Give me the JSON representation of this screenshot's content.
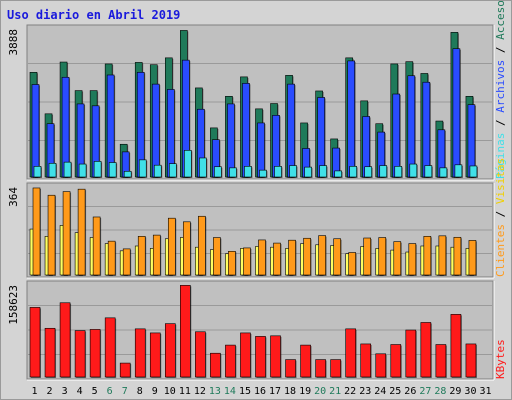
{
  "title": "Uso diario en Abril 2019",
  "colors": {
    "visitas": "#ffff60",
    "visitas_alt": "#f0d000",
    "clientes": "#ff9a1a",
    "paginas": "#40e0e8",
    "archivos": "#2a4cff",
    "accesos": "#1f7a5a",
    "kbytes": "#ff1a1a",
    "weekend": "#1f7a5a",
    "weekday": "#000000"
  },
  "chart_data": [
    {
      "type": "bar",
      "name": "accesos-archivos-paginas",
      "categories": [
        "1",
        "2",
        "3",
        "4",
        "5",
        "6",
        "7",
        "8",
        "9",
        "10",
        "11",
        "12",
        "13",
        "14",
        "15",
        "16",
        "17",
        "18",
        "19",
        "20",
        "21",
        "22",
        "23",
        "24",
        "25",
        "26",
        "27",
        "28",
        "29",
        "30",
        "31"
      ],
      "weekend_days": [
        6,
        7,
        13,
        14,
        20,
        21,
        27,
        28
      ],
      "ymax_label": "3888",
      "ymax": 3888,
      "series": [
        {
          "name": "Accesos",
          "color": "#1f7a5a",
          "values": [
            2750,
            1660,
            3020,
            2270,
            2270,
            2970,
            860,
            3010,
            2950,
            3130,
            3850,
            2340,
            1290,
            2120,
            2630,
            1790,
            1930,
            2670,
            1420,
            2260,
            1000,
            3130,
            2000,
            1400,
            2970,
            3030,
            2720,
            1470,
            3800,
            2120,
            0
          ]
        },
        {
          "name": "Archivos",
          "color": "#2a4cff",
          "values": [
            2430,
            1400,
            2620,
            1920,
            1870,
            2680,
            660,
            2750,
            2440,
            2300,
            3070,
            1780,
            980,
            1920,
            2460,
            1420,
            1620,
            2440,
            750,
            2090,
            760,
            3050,
            1590,
            1180,
            2180,
            2660,
            2490,
            1240,
            3370,
            1900,
            0
          ]
        },
        {
          "name": "Páginas",
          "color": "#40e0e8",
          "values": [
            280,
            360,
            390,
            340,
            410,
            380,
            150,
            450,
            310,
            350,
            700,
            500,
            270,
            240,
            280,
            180,
            280,
            300,
            260,
            300,
            160,
            280,
            270,
            300,
            280,
            340,
            300,
            240,
            320,
            290,
            0
          ]
        }
      ]
    },
    {
      "type": "bar",
      "name": "visitas-clientes",
      "ymax_label": "364",
      "ymax": 364,
      "series": [
        {
          "name": "Clientes",
          "color": "#ff9a1a",
          "values": [
            360,
            330,
            345,
            355,
            240,
            140,
            108,
            160,
            165,
            235,
            220,
            243,
            155,
            98,
            112,
            145,
            132,
            144,
            152,
            163,
            150,
            93,
            153,
            155,
            138,
            130,
            160,
            162,
            156,
            143,
            0
          ]
        },
        {
          "name": "Visitas",
          "color": "#ffff60",
          "values": [
            190,
            160,
            205,
            175,
            155,
            130,
            100,
            120,
            110,
            150,
            155,
            115,
            105,
            88,
            110,
            118,
            115,
            110,
            130,
            125,
            122,
            88,
            118,
            110,
            103,
            95,
            120,
            120,
            115,
            110,
            0
          ]
        }
      ]
    },
    {
      "type": "bar",
      "name": "kbytes",
      "ymax_label": "158623",
      "ymax": 158623,
      "series": [
        {
          "name": "KBytes",
          "color": "#ff1a1a",
          "values": [
            120000,
            84000,
            128000,
            80000,
            82000,
            102000,
            24000,
            83000,
            76000,
            92000,
            158000,
            78000,
            41000,
            55000,
            76000,
            70000,
            71000,
            30000,
            55000,
            30000,
            30000,
            83000,
            57000,
            40000,
            56000,
            81000,
            94000,
            56000,
            108000,
            57000,
            0
          ]
        }
      ]
    }
  ],
  "side_labels": {
    "accesos": "Accesos",
    "archivos": "Archivos",
    "paginas": "Páginas",
    "visitas": "Visitas",
    "clientes": "Clientes",
    "kbytes": "KBytes",
    "separator": "/"
  }
}
